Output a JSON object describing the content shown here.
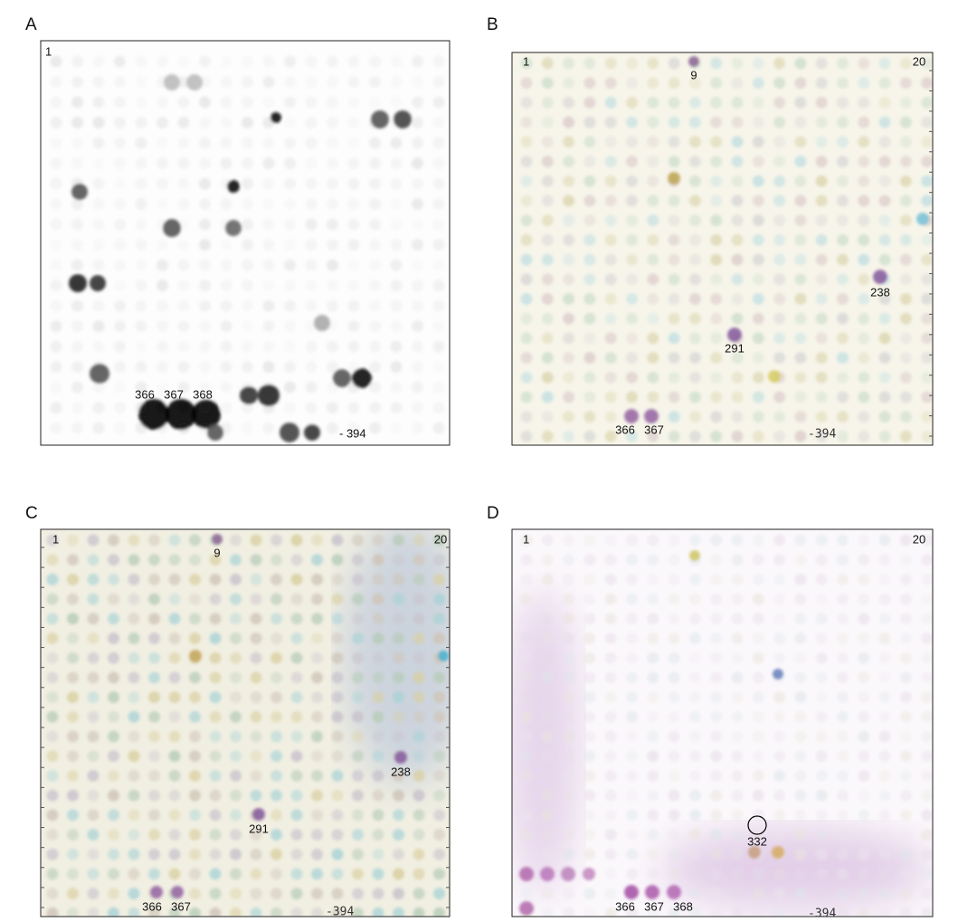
{
  "panels": [
    {
      "label": "A",
      "annotations": [
        "1",
        "366",
        "367",
        "368",
        "- 394"
      ]
    },
    {
      "label": "B",
      "annotations": [
        "1",
        "9",
        "20",
        "238",
        "291",
        "366",
        "367",
        "-394"
      ]
    },
    {
      "label": "C",
      "annotations": [
        "1",
        "9",
        "20",
        "238",
        "291",
        "366",
        "367",
        "-394"
      ]
    },
    {
      "label": "D",
      "annotations": [
        "1",
        "20",
        "332",
        "366",
        "367",
        "368",
        "-394"
      ]
    }
  ]
}
